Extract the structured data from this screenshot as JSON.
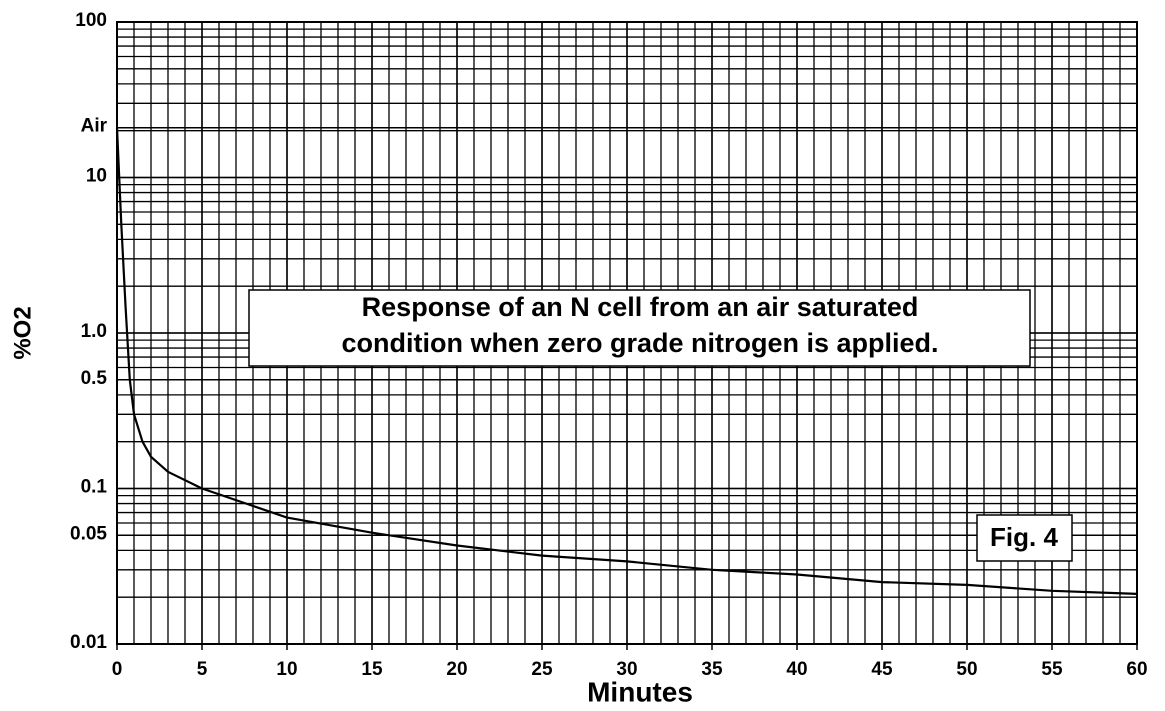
{
  "chart_data": {
    "type": "line",
    "xlabel": "Minutes",
    "ylabel": "%O2",
    "annotation": [
      "Response of an N cell from an air saturated",
      "condition when zero grade nitrogen is applied."
    ],
    "figure_label": "Fig. 4",
    "x": [
      0,
      0.25,
      0.5,
      0.75,
      1,
      1.5,
      2,
      3,
      5,
      10,
      15,
      20,
      25,
      30,
      35,
      40,
      45,
      50,
      55,
      60
    ],
    "series": [
      {
        "name": "%O2",
        "color": "#000000",
        "values": [
          20.9,
          5,
          1.5,
          0.5,
          0.3,
          0.2,
          0.16,
          0.128,
          0.1,
          0.065,
          0.052,
          0.043,
          0.037,
          0.034,
          0.03,
          0.028,
          0.025,
          0.024,
          0.022,
          0.021
        ]
      }
    ],
    "xlim": [
      0,
      60
    ],
    "xticks": [
      0,
      5,
      10,
      15,
      20,
      25,
      30,
      35,
      40,
      45,
      50,
      55,
      60
    ],
    "ylim": [
      0.01,
      100
    ],
    "ylog": true,
    "yticks": [
      0.01,
      0.05,
      0.1,
      0.5,
      {
        "value": 1,
        "label": "1.0"
      },
      10,
      {
        "value": 20.9,
        "label": "Air"
      },
      100
    ],
    "grid": true
  }
}
